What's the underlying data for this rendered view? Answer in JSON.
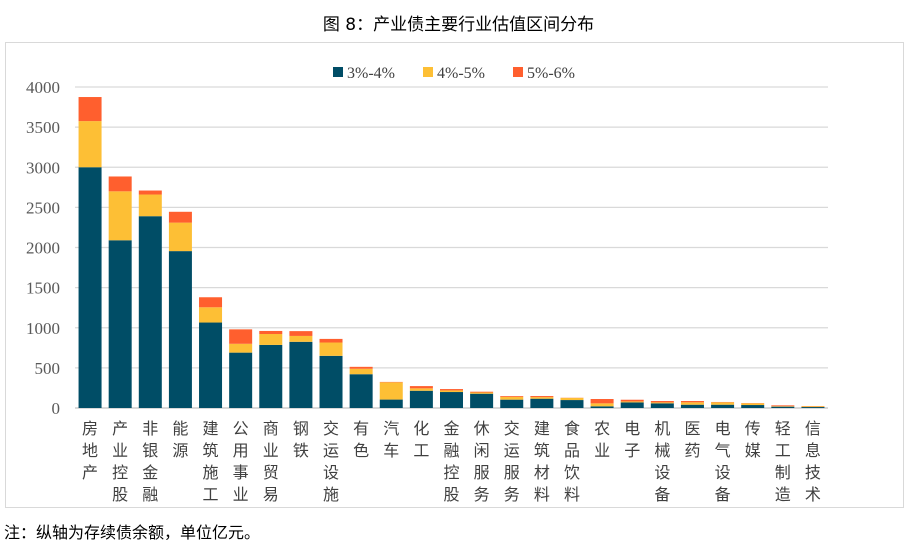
{
  "chart_data": {
    "type": "bar",
    "stacked": true,
    "title": "图 8：产业债主要行业估值区间分布",
    "note": "注：纵轴为存续债余额，单位亿元。",
    "categories": [
      "房地产",
      "产业控股",
      "非银金融",
      "能源",
      "建筑施工",
      "公用事业",
      "商业贸易",
      "钢铁",
      "交运设施",
      "有色",
      "汽车",
      "化工",
      "金融控股",
      "休闲服务",
      "交运服务",
      "建筑材料",
      "食品饮料",
      "农业",
      "电子",
      "机械设备",
      "医药",
      "电气设备",
      "传媒",
      "轻工制造",
      "信息技术"
    ],
    "series": [
      {
        "name": "3%-4%",
        "color": "#004d66",
        "values": [
          3000,
          2090,
          2390,
          1955,
          1065,
          690,
          786,
          825,
          650,
          421,
          105,
          215,
          199,
          178,
          104,
          116,
          99,
          21,
          70,
          58,
          41,
          41,
          37,
          17,
          12
        ]
      },
      {
        "name": "4%-5%",
        "color": "#fdbf35",
        "values": [
          575,
          610,
          270,
          355,
          190,
          110,
          136,
          73,
          166,
          68,
          215,
          30,
          20,
          15,
          35,
          20,
          27,
          37,
          12,
          12,
          30,
          30,
          22,
          6,
          10
        ]
      },
      {
        "name": "5%-6%",
        "color": "#ff5f2e",
        "values": [
          300,
          185,
          50,
          135,
          125,
          180,
          38,
          60,
          45,
          24,
          5,
          28,
          17,
          10,
          10,
          13,
          2,
          54,
          21,
          17,
          16,
          4,
          3,
          10,
          3
        ]
      }
    ],
    "ylim": [
      0,
      4000
    ],
    "yticks": [
      0,
      500,
      1000,
      1500,
      2000,
      2500,
      3000,
      3500,
      4000
    ],
    "grid": true,
    "legend_position": "top-center"
  }
}
